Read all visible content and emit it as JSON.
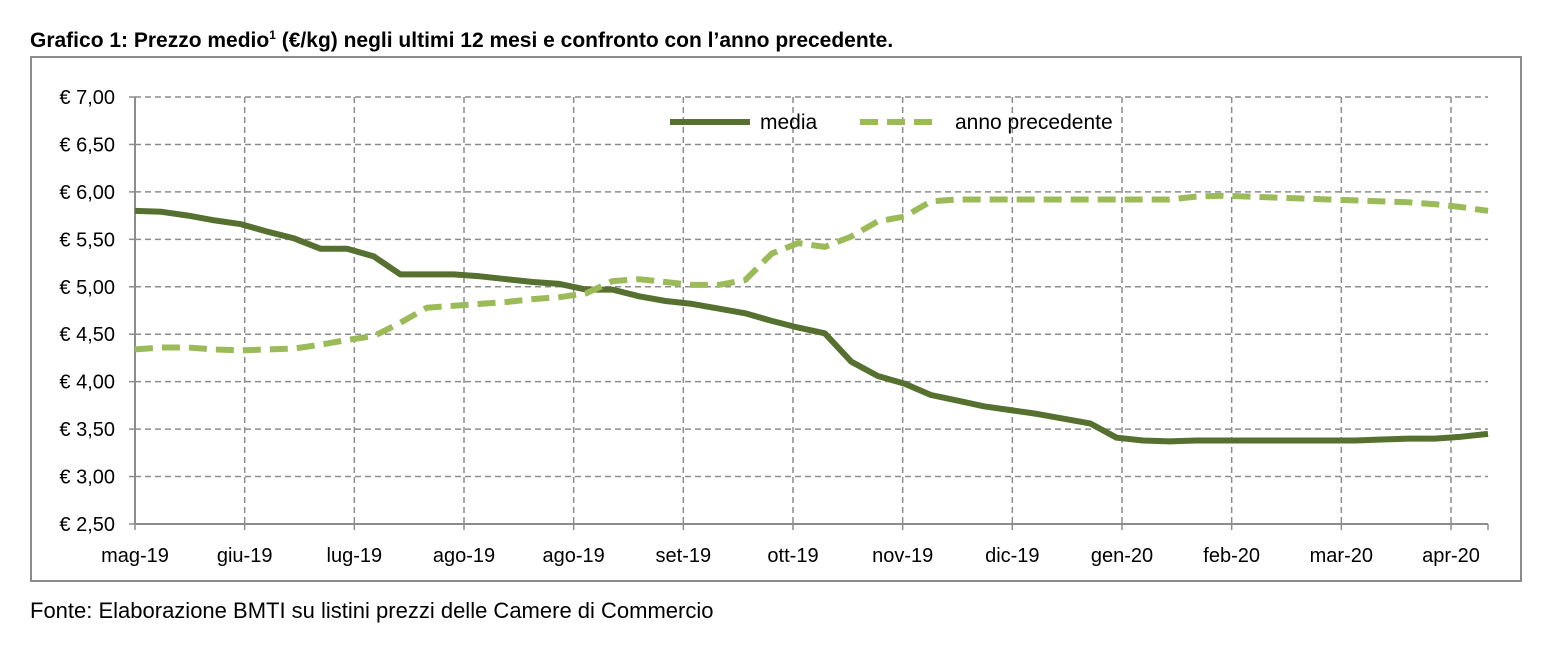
{
  "title": {
    "text": "Grafico 1: Prezzo medio",
    "sup": "1",
    "rest": " (€/kg) negli ultimi 12 mesi e confronto con l’anno precedente."
  },
  "source": "Fonte: Elaborazione BMTI su listini prezzi delle Camere di Commercio",
  "colors": {
    "media": "#56702f",
    "anno_precedente": "#9bbb59",
    "grid": "#8c8c8c",
    "axis": "#8c8c8c"
  },
  "chart_data": {
    "type": "line",
    "title": "",
    "xlabel": "",
    "ylabel": "",
    "ylim": [
      2.5,
      7.0
    ],
    "yticks": [
      2.5,
      3.0,
      3.5,
      4.0,
      4.5,
      5.0,
      5.5,
      6.0,
      6.5,
      7.0
    ],
    "ytick_labels": [
      "€ 2,50",
      "€ 3,00",
      "€ 3,50",
      "€ 4,00",
      "€ 4,50",
      "€ 5,00",
      "€ 5,50",
      "€ 6,00",
      "€ 6,50",
      "€ 7,00"
    ],
    "xtick_labels": [
      "mag-19",
      "giu-19",
      "lug-19",
      "ago-19",
      "ago-19",
      "set-19",
      "ott-19",
      "nov-19",
      "dic-19",
      "gen-20",
      "feb-20",
      "mar-20",
      "apr-20"
    ],
    "grid": true,
    "legend_position": "top-right",
    "series": [
      {
        "name": "media",
        "style": "solid",
        "values": [
          5.8,
          5.79,
          5.75,
          5.7,
          5.66,
          5.58,
          5.51,
          5.4,
          5.4,
          5.32,
          5.13,
          5.13,
          5.13,
          5.11,
          5.08,
          5.05,
          5.03,
          4.97,
          4.97,
          4.9,
          4.85,
          4.82,
          4.77,
          4.72,
          4.64,
          4.57,
          4.51,
          4.21,
          4.06,
          3.98,
          3.86,
          3.8,
          3.74,
          3.7,
          3.66,
          3.61,
          3.56,
          3.41,
          3.38,
          3.37,
          3.38,
          3.38,
          3.38,
          3.38,
          3.38,
          3.38,
          3.38,
          3.39,
          3.4,
          3.4,
          3.42,
          3.45
        ]
      },
      {
        "name": "anno precedente",
        "style": "dashed",
        "values": [
          4.34,
          4.36,
          4.36,
          4.34,
          4.33,
          4.34,
          4.35,
          4.39,
          4.44,
          4.48,
          4.62,
          4.78,
          4.8,
          4.82,
          4.84,
          4.87,
          4.89,
          4.93,
          5.06,
          5.08,
          5.05,
          5.02,
          5.02,
          5.07,
          5.35,
          5.46,
          5.42,
          5.53,
          5.69,
          5.74,
          5.9,
          5.92,
          5.92,
          5.92,
          5.92,
          5.92,
          5.92,
          5.92,
          5.92,
          5.92,
          5.95,
          5.96,
          5.95,
          5.94,
          5.93,
          5.92,
          5.91,
          5.9,
          5.89,
          5.87,
          5.84,
          5.8
        ]
      }
    ]
  }
}
